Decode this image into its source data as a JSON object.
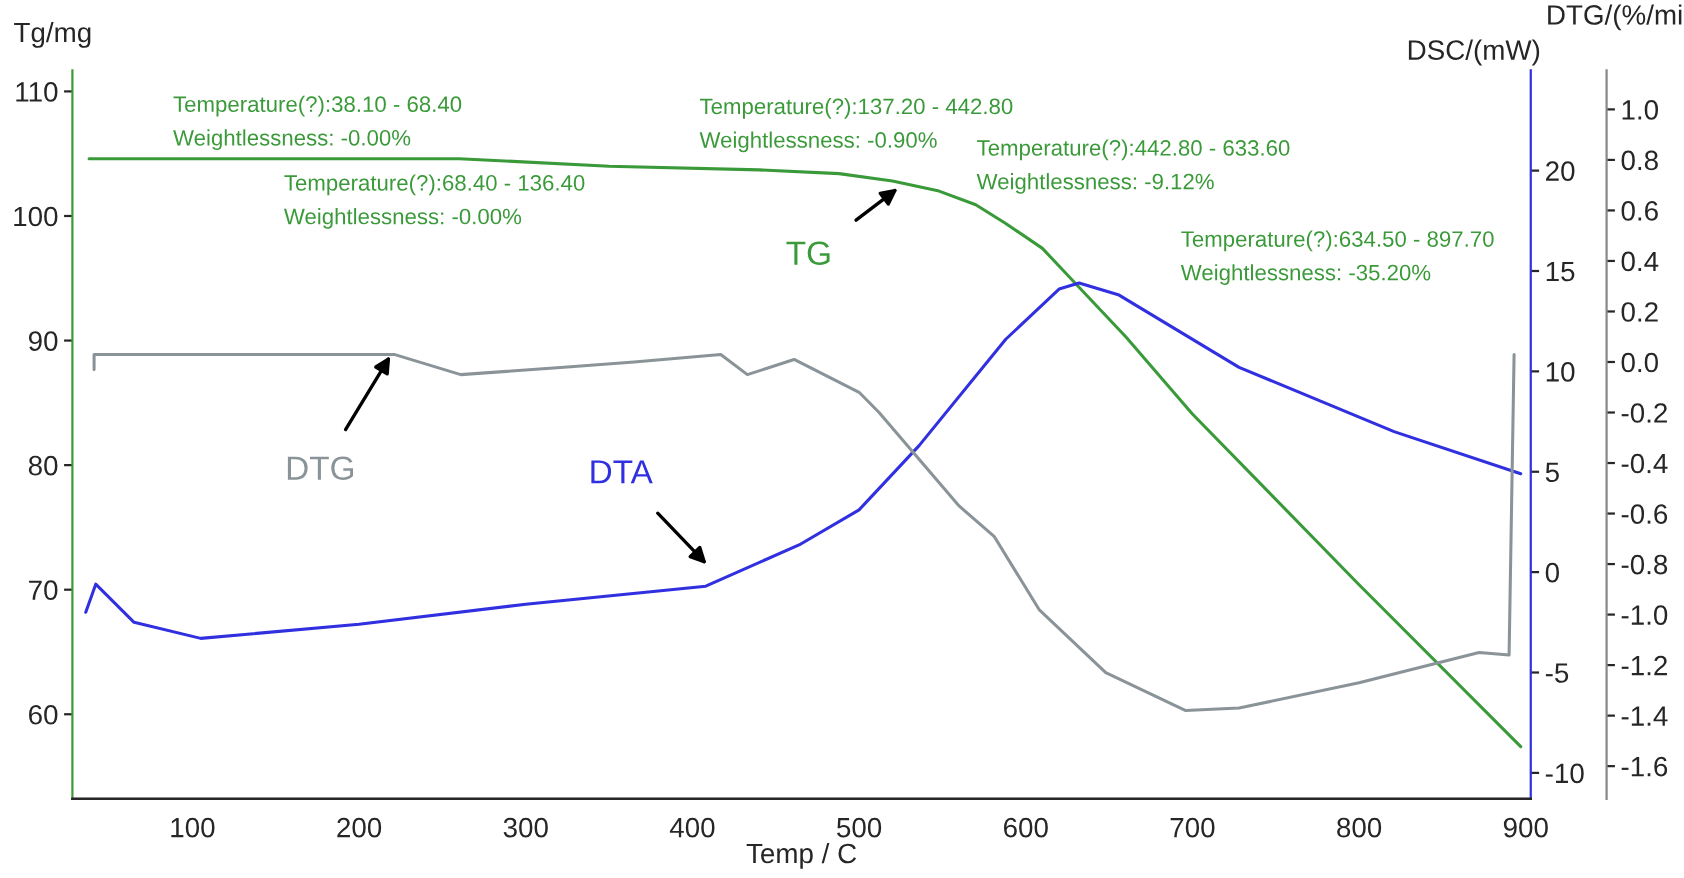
{
  "chart_data": {
    "type": "line",
    "xlabel": "Temp / C",
    "ylabel": "Tg/mg",
    "y2label": "DSC/(mW)",
    "y3label": "DTG/(%/mi",
    "xlim": [
      28,
      903
    ],
    "xticks": [
      100,
      200,
      300,
      400,
      500,
      600,
      700,
      800,
      900
    ],
    "ylim": [
      53.2,
      111.7
    ],
    "yticks": [
      60,
      70,
      80,
      90,
      100,
      110
    ],
    "y2lim": [
      -11.3,
      25
    ],
    "y2ticks": [
      -10,
      -5,
      0,
      5,
      10,
      15,
      20
    ],
    "y3lim": [
      -1.73,
      1.155
    ],
    "y3ticks": [
      -1.6,
      -1.4,
      -1.2,
      {
        "value": -1,
        "label": "-1.0"
      },
      -0.8,
      -0.6,
      -0.4,
      -0.2,
      {
        "value": 0,
        "label": "0.0"
      },
      0.2,
      0.4,
      0.6,
      0.8,
      {
        "value": 1,
        "label": "1.0"
      }
    ],
    "grid": false,
    "legend": false,
    "marker": "none",
    "line_style": "solid",
    "series": [
      {
        "name": "TG",
        "color": "#3a9a3a",
        "axis": "y",
        "x": [
          38,
          260,
          350,
          440,
          488,
          520,
          548,
          570,
          588,
          610,
          629,
          660,
          700,
          800,
          897
        ],
        "values": [
          104.6,
          104.6,
          104.0,
          103.7,
          103.4,
          102.8,
          102.0,
          100.9,
          99.4,
          97.4,
          94.7,
          90.3,
          84.1,
          70.4,
          57.4
        ]
      },
      {
        "name": "DTG",
        "color": "#8a9498",
        "axis": "y3",
        "x": [
          41,
          41,
          221,
          261,
          325,
          365,
          417,
          433,
          461,
          500,
          512,
          560,
          581,
          608,
          648,
          696,
          728,
          800,
          872,
          890,
          893
        ],
        "values": [
          -0.03,
          0.03,
          0.03,
          -0.05,
          -0.02,
          0.0,
          0.03,
          -0.05,
          0.01,
          -0.12,
          -0.2,
          -0.57,
          -0.69,
          -0.98,
          -1.23,
          -1.38,
          -1.37,
          -1.27,
          -1.15,
          -1.16,
          0.03
        ]
      },
      {
        "name": "DTA",
        "color": "#3030e0",
        "axis": "y2",
        "x": [
          36,
          42,
          65,
          105,
          200,
          300,
          408,
          465,
          500,
          536,
          588,
          620,
          632,
          656,
          728,
          821,
          897
        ],
        "values": [
          -2.0,
          -0.6,
          -2.5,
          -3.3,
          -2.6,
          -1.6,
          -0.7,
          1.4,
          3.1,
          6.3,
          11.6,
          14.1,
          14.4,
          13.8,
          10.2,
          7.0,
          4.9
        ]
      }
    ],
    "annotations": [
      "Temperature(?):38.10 - 68.40\nWeightlessness: -0.00%",
      "Temperature(?):68.40 - 136.40\nWeightlessness: -0.00%",
      "Temperature(?):137.20 - 442.80\nWeightlessness: -0.90%",
      "Temperature(?):442.80 - 633.60\nWeightlessness: -9.12%",
      "Temperature(?):634.50 - 897.70\nWeightlessness: -35.20%"
    ]
  }
}
